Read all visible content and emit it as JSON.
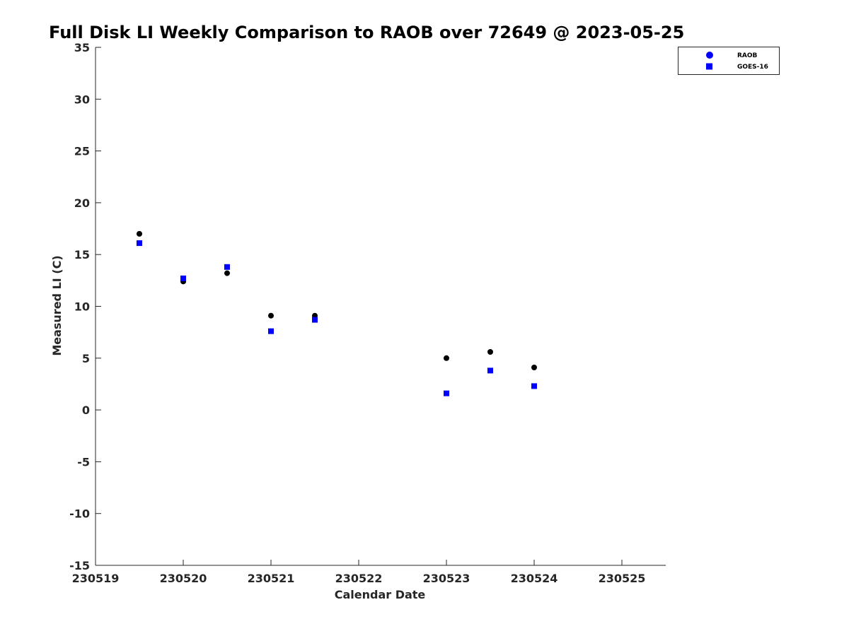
{
  "chart_data": {
    "type": "scatter",
    "title": "Full Disk LI Weekly Comparison to RAOB over 72649 @ 2023-05-25",
    "xlabel": "Calendar Date",
    "ylabel": "Measured LI (C)",
    "xlim": [
      230519,
      230525.5
    ],
    "ylim": [
      -15,
      35
    ],
    "xticks": [
      230519,
      230520,
      230521,
      230522,
      230523,
      230524,
      230525
    ],
    "xtick_labels": [
      "230519",
      "230520",
      "230521",
      "230522",
      "230523",
      "230524",
      "230525"
    ],
    "yticks": [
      -15,
      -10,
      -5,
      0,
      5,
      10,
      15,
      20,
      25,
      30,
      35
    ],
    "ytick_labels": [
      "-15",
      "-10",
      "-5",
      "0",
      "5",
      "10",
      "15",
      "20",
      "25",
      "30",
      "35"
    ],
    "grid": false,
    "legend_position": "top-right",
    "series": [
      {
        "name": "RAOB",
        "marker": "circle",
        "color": "#000000",
        "legend_color": "#0000ff",
        "x": [
          230519.5,
          230520,
          230520.5,
          230521,
          230521.5,
          230523,
          230523.5,
          230524
        ],
        "y": [
          17.0,
          12.4,
          13.2,
          9.1,
          9.1,
          5.0,
          5.6,
          4.1
        ]
      },
      {
        "name": "GOES-16",
        "marker": "square",
        "color": "#0000ff",
        "legend_color": "#0000ff",
        "x": [
          230519.5,
          230520,
          230520.5,
          230521,
          230521.5,
          230523,
          230523.5,
          230524
        ],
        "y": [
          16.1,
          12.7,
          13.8,
          7.6,
          8.7,
          1.6,
          3.8,
          2.3
        ]
      }
    ]
  }
}
